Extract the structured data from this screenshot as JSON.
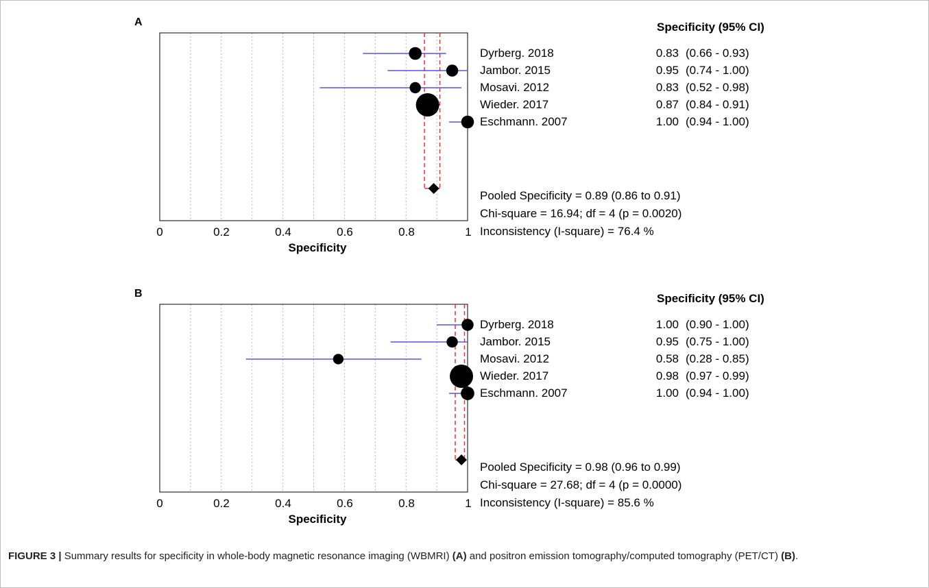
{
  "chart_data": [
    {
      "type": "forest",
      "panel": "A",
      "header": "Specificity (95% CI)",
      "xlabel": "Specificity",
      "xlim": [
        0,
        1
      ],
      "ticks": [
        "0",
        "0.2",
        "0.4",
        "0.6",
        "0.8",
        "1"
      ],
      "studies": [
        {
          "name": "Dyrberg. 2018",
          "value": 0.83,
          "lo": 0.66,
          "hi": 0.93,
          "value_label": "0.83",
          "ci_label": "(0.66 - 0.93)",
          "weight": 0.3
        },
        {
          "name": "Jambor. 2015",
          "value": 0.95,
          "lo": 0.74,
          "hi": 1.0,
          "value_label": "0.95",
          "ci_label": "(0.74 - 1.00)",
          "weight": 0.25
        },
        {
          "name": "Mosavi. 2012",
          "value": 0.83,
          "lo": 0.52,
          "hi": 0.98,
          "value_label": "0.83",
          "ci_label": "(0.52 - 0.98)",
          "weight": 0.2
        },
        {
          "name": "Wieder. 2017",
          "value": 0.87,
          "lo": 0.84,
          "hi": 0.91,
          "value_label": "0.87",
          "ci_label": "(0.84 - 0.91)",
          "weight": 1.0
        },
        {
          "name": "Eschmann. 2007",
          "value": 1.0,
          "lo": 0.94,
          "hi": 1.0,
          "value_label": "1.00",
          "ci_label": "(0.94 - 1.00)",
          "weight": 0.3
        }
      ],
      "pooled": {
        "value": 0.89,
        "lo": 0.86,
        "hi": 0.91
      },
      "stats": [
        "Pooled Specificity = 0.89 (0.86 to 0.91)",
        "Chi-square = 16.94; df =  4 (p = 0.0020)",
        "Inconsistency (I-square) = 76.4 %"
      ]
    },
    {
      "type": "forest",
      "panel": "B",
      "header": "Specificity (95% CI)",
      "xlabel": "Specificity",
      "xlim": [
        0,
        1
      ],
      "ticks": [
        "0",
        "0.2",
        "0.4",
        "0.6",
        "0.8",
        "1"
      ],
      "studies": [
        {
          "name": "Dyrberg. 2018",
          "value": 1.0,
          "lo": 0.9,
          "hi": 1.0,
          "value_label": "1.00",
          "ci_label": "(0.90 - 1.00)",
          "weight": 0.25
        },
        {
          "name": "Jambor. 2015",
          "value": 0.95,
          "lo": 0.75,
          "hi": 1.0,
          "value_label": "0.95",
          "ci_label": "(0.75 - 1.00)",
          "weight": 0.2
        },
        {
          "name": "Mosavi. 2012",
          "value": 0.58,
          "lo": 0.28,
          "hi": 0.85,
          "value_label": "0.58",
          "ci_label": "(0.28 - 0.85)",
          "weight": 0.15
        },
        {
          "name": "Wieder. 2017",
          "value": 0.98,
          "lo": 0.97,
          "hi": 0.99,
          "value_label": "0.98",
          "ci_label": "(0.97 - 0.99)",
          "weight": 1.0
        },
        {
          "name": "Eschmann. 2007",
          "value": 1.0,
          "lo": 0.94,
          "hi": 1.0,
          "value_label": "1.00",
          "ci_label": "(0.94 - 1.00)",
          "weight": 0.35
        }
      ],
      "pooled": {
        "value": 0.98,
        "lo": 0.96,
        "hi": 0.99
      },
      "stats": [
        "Pooled Specificity = 0.98 (0.96 to 0.99)",
        "Chi-square = 27.68; df =  4 (p = 0.0000)",
        "Inconsistency (I-square) = 85.6 %"
      ]
    }
  ],
  "caption": {
    "label": "FIGURE 3 |",
    "text1": " Summary results for specificity in whole-body magnetic resonance imaging (WBMRI) ",
    "ref_a": "(A)",
    "text2": " and positron emission tomography/computed tomography (PET/CT) ",
    "ref_b": "(B)",
    "text3": "."
  },
  "colors": {
    "ci_line": "#5555dd",
    "pooled_line": "#ee3333",
    "grid": "#b5b5b5",
    "marker": "#000000"
  }
}
